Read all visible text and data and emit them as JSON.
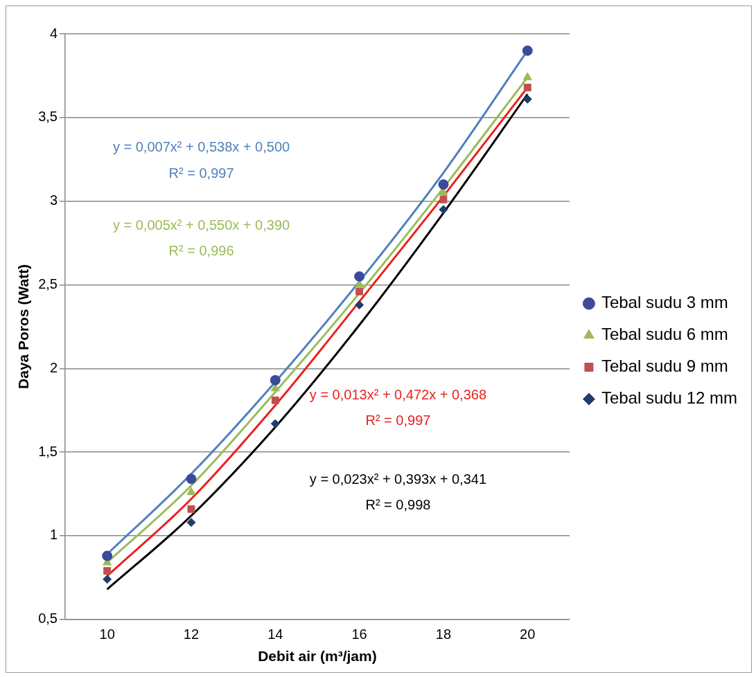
{
  "chart_data": {
    "type": "scatter",
    "xlabel": "Debit air (m³/jam)",
    "ylabel": "Daya Poros (Watt)",
    "xlim": [
      9,
      21
    ],
    "xticks": [
      10,
      12,
      14,
      16,
      18,
      20
    ],
    "ylim": [
      0.5,
      4
    ],
    "yticks": [
      {
        "value": 0.5,
        "label": "0,5"
      },
      1,
      {
        "value": 1.5,
        "label": "1,5"
      },
      2,
      {
        "value": 2.5,
        "label": "2,5"
      },
      3,
      {
        "value": 3.5,
        "label": "3,5"
      },
      4
    ],
    "grid": "y",
    "legend": "right",
    "x": [
      10,
      12,
      14,
      16,
      18,
      20
    ],
    "series": [
      {
        "name": "Tebal sudu 3 mm",
        "color": "#3b4a9c",
        "marker": "circle",
        "values": [
          0.88,
          1.34,
          1.93,
          2.55,
          3.1,
          3.9
        ]
      },
      {
        "name": "Tebal sudu 6 mm",
        "color": "#9bbb59",
        "marker": "triangle",
        "values": [
          0.84,
          1.26,
          1.88,
          2.5,
          3.05,
          3.74
        ]
      },
      {
        "name": "Tebal sudu 9 mm",
        "color": "#c0504d",
        "marker": "square",
        "values": [
          0.79,
          1.16,
          1.81,
          2.46,
          3.01,
          3.68
        ]
      },
      {
        "name": "Tebal sudu 12 mm",
        "color": "#1f3d6b",
        "marker": "diamond",
        "values": [
          0.74,
          1.08,
          1.67,
          2.38,
          2.95,
          3.61
        ]
      },
      {
        "type": "line",
        "color": "#4f81bd",
        "values": [
          0.89,
          1.37,
          1.92,
          2.52,
          3.17,
          3.9
        ]
      },
      {
        "type": "line",
        "color": "#9bbb59",
        "values": [
          0.84,
          1.3,
          1.86,
          2.45,
          3.08,
          3.74
        ]
      },
      {
        "type": "line",
        "color": "#e8221e",
        "values": [
          0.76,
          1.22,
          1.78,
          2.4,
          3.03,
          3.68
        ]
      },
      {
        "type": "line",
        "color": "#000000",
        "values": [
          0.68,
          1.12,
          1.65,
          2.26,
          2.93,
          3.64
        ]
      }
    ],
    "annotations": [
      "y = 0,007x² + 0,538x + 0,500",
      "R² = 0,997",
      "y = 0,005x² + 0,550x + 0,390",
      "R² = 0,996",
      "y = 0,013x² + 0,472x + 0,368",
      "R² = 0,997",
      "y = 0,023x² + 0,393x + 0,341",
      "R² = 0,998"
    ]
  }
}
